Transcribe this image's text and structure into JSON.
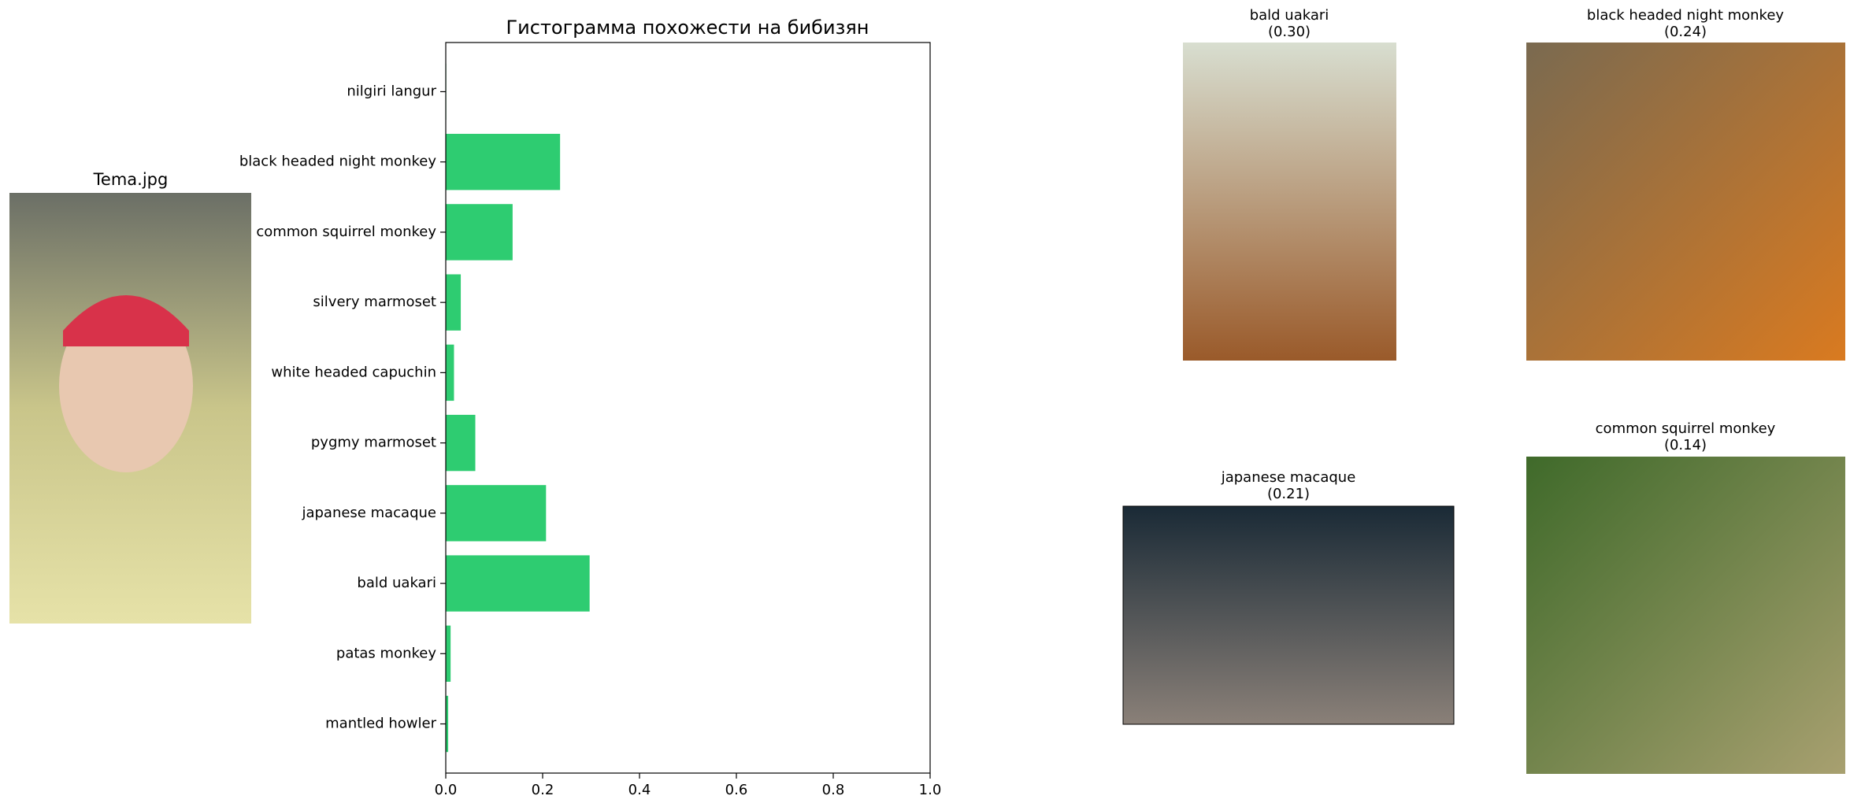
{
  "chart_data": {
    "type": "barh",
    "title": "Гистограмма похожести на бибизян",
    "categories": [
      "nilgiri langur",
      "black headed night monkey",
      "common squirrel monkey",
      "silvery marmoset",
      "white headed capuchin",
      "pygmy marmoset",
      "japanese macaque",
      "bald uakari",
      "patas monkey",
      "mantled howler"
    ],
    "values": [
      0.001,
      0.236,
      0.138,
      0.031,
      0.017,
      0.061,
      0.207,
      0.297,
      0.01,
      0.005
    ],
    "color": "#2ecc71",
    "xlim": [
      0,
      1
    ],
    "xticks": [
      {
        "value": 0,
        "label": "0.0"
      },
      0.2,
      0.4,
      0.6,
      0.8,
      {
        "value": 1,
        "label": "1.0"
      }
    ]
  },
  "photo": {
    "title": "Tema.jpg"
  },
  "gallery": [
    {
      "name": "bald uakari",
      "score": "(0.30)"
    },
    {
      "name": "black headed night monkey",
      "score": "(0.24)"
    },
    {
      "name": "japanese macaque",
      "score": "(0.21)"
    },
    {
      "name": "common squirrel monkey",
      "score": "(0.14)"
    }
  ]
}
